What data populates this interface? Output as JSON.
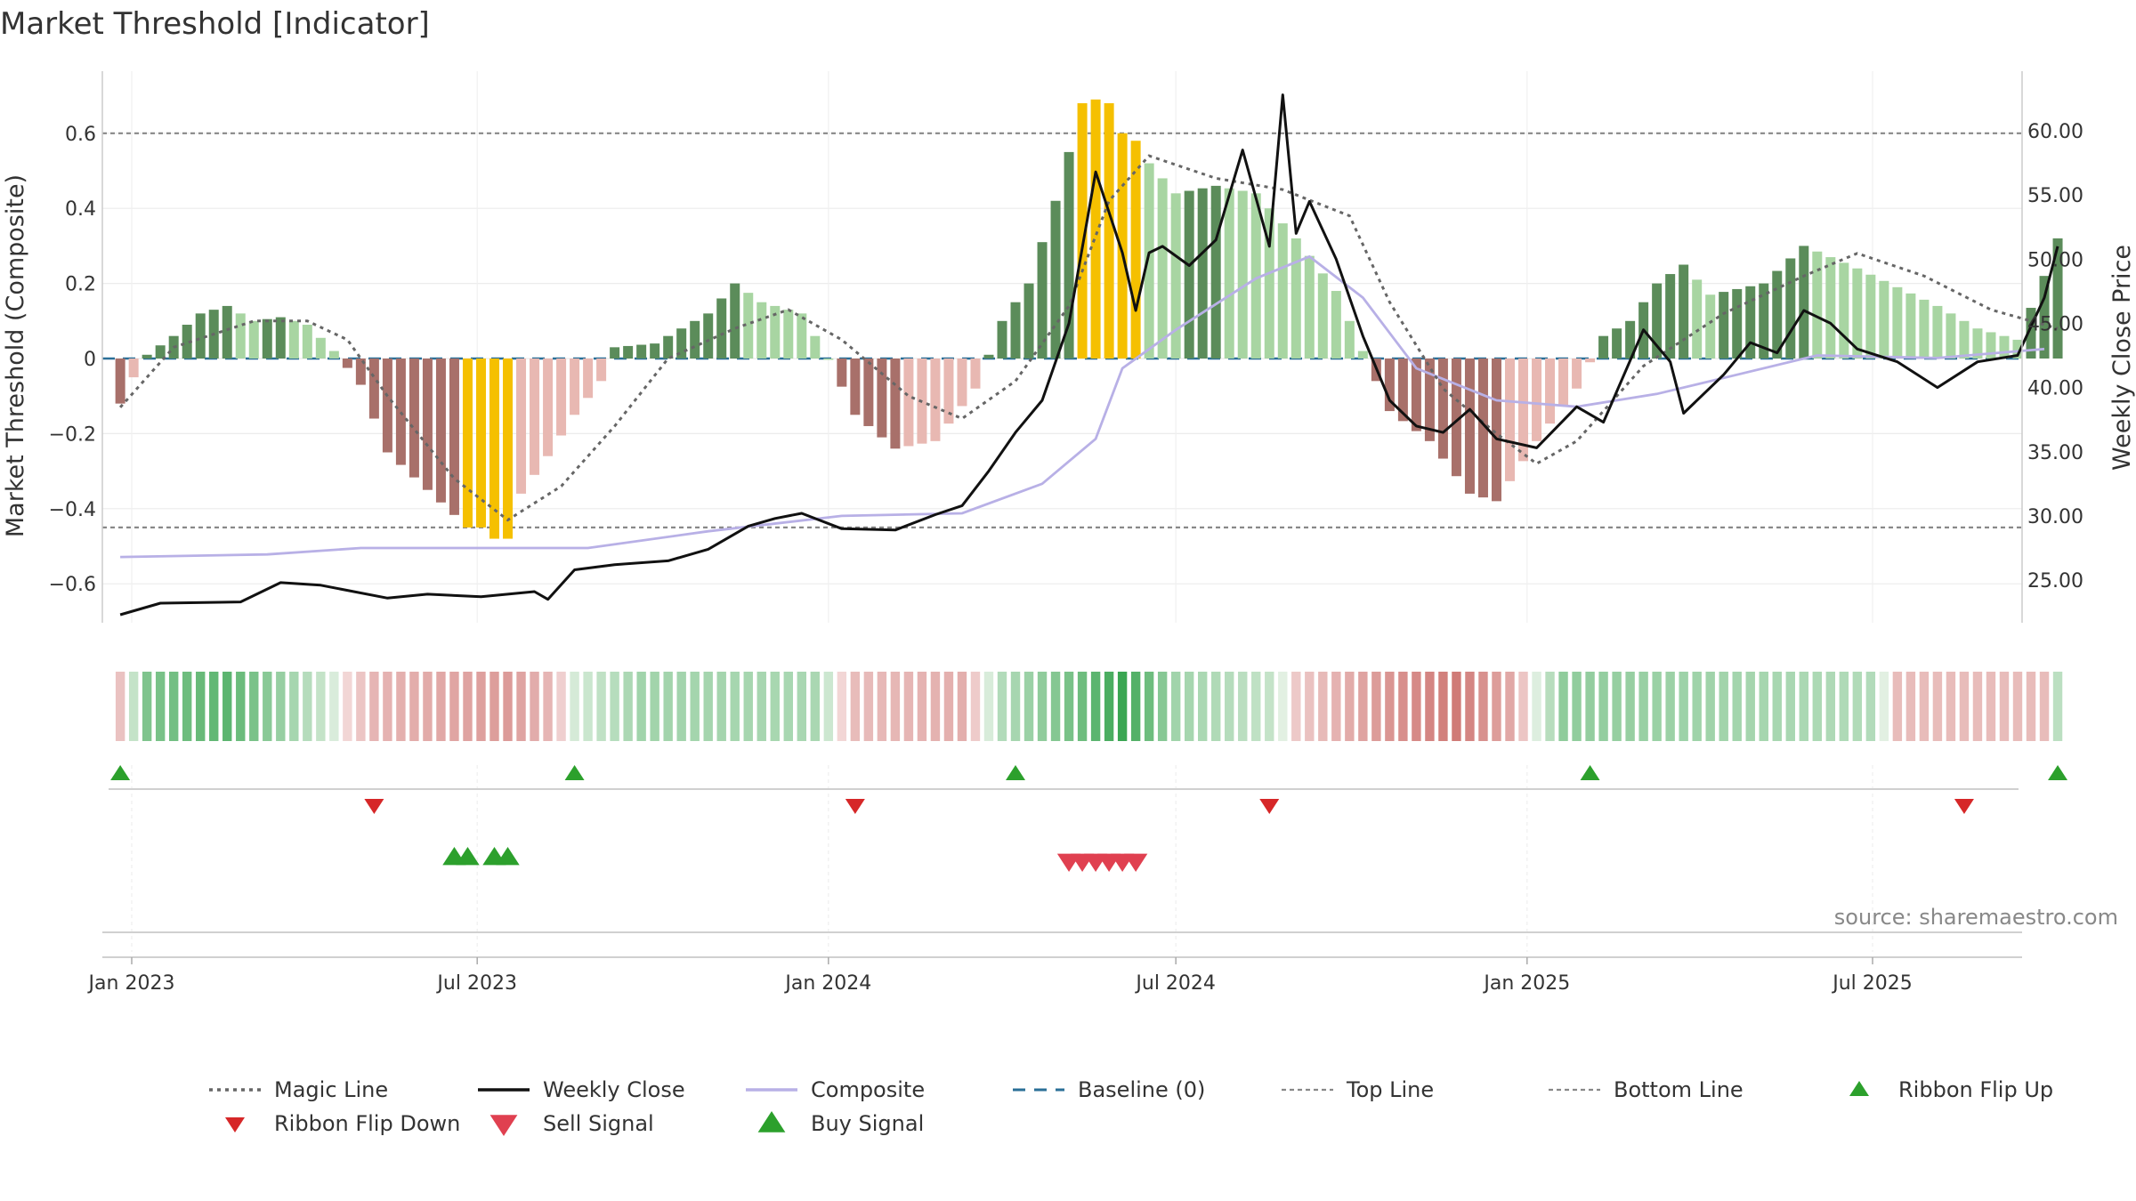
{
  "title": "Market Threshold [Indicator]",
  "source": "source: sharemaestro.com",
  "colors": {
    "dark_green": "#5b8c5a",
    "light_green": "#a8d5a2",
    "dark_red": "#a8706a",
    "light_red": "#e8b8b2",
    "gold": "#f5c000",
    "close": "#111111",
    "composite": "#b8b0e6",
    "magic": "#666666",
    "baseline": "#2a6f97",
    "thresh": "#888888",
    "up_marker": "#2ca02c",
    "down_marker": "#d62728"
  },
  "chart_data": {
    "type": "bar",
    "title": "Market Threshold [Indicator]",
    "ylabel": "Market Threshold (Composite)",
    "y2label": "Weekly Close Price",
    "ylim": [
      -0.75,
      0.76
    ],
    "y2lim": [
      20.0,
      64.0
    ],
    "yticks": [
      {
        "v": 0.6,
        "label": "0.6"
      },
      {
        "v": 0.4,
        "label": "0.4"
      },
      {
        "v": 0.2,
        "label": "0.2"
      },
      {
        "v": 0.0,
        "label": "0"
      },
      {
        "v": -0.2,
        "label": "−0.2"
      },
      {
        "v": -0.4,
        "label": "−0.4"
      },
      {
        "v": -0.6,
        "label": "−0.6"
      }
    ],
    "y2ticks": [
      {
        "v": 60,
        "label": "60.00"
      },
      {
        "v": 55,
        "label": "55.00"
      },
      {
        "v": 50,
        "label": "50.00"
      },
      {
        "v": 45,
        "label": "45.00"
      },
      {
        "v": 40,
        "label": "40.00"
      },
      {
        "v": 35,
        "label": "35.00"
      },
      {
        "v": 30,
        "label": "30.00"
      },
      {
        "v": 25,
        "label": "25.00"
      }
    ],
    "x_start": "2022-12-26",
    "x_end": "2025-10-06",
    "xticks": [
      {
        "date": "2023-01-01",
        "label": "Jan 2023"
      },
      {
        "date": "2023-07-01",
        "label": "Jul 2023"
      },
      {
        "date": "2024-01-01",
        "label": "Jan 2024"
      },
      {
        "date": "2024-07-01",
        "label": "Jul 2024"
      },
      {
        "date": "2025-01-01",
        "label": "Jan 2025"
      },
      {
        "date": "2025-07-01",
        "label": "Jul 2025"
      }
    ],
    "top_line": 0.6,
    "bottom_line": -0.45,
    "composite_keys": [
      [
        "2022-12-26",
        -0.12
      ],
      [
        "2023-01-02",
        -0.05
      ],
      [
        "2023-01-09",
        0.01
      ],
      [
        "2023-01-23",
        0.06
      ],
      [
        "2023-02-06",
        0.12
      ],
      [
        "2023-02-20",
        0.14
      ],
      [
        "2023-03-06",
        0.1
      ],
      [
        "2023-03-20",
        0.11
      ],
      [
        "2023-04-03",
        0.09
      ],
      [
        "2023-04-17",
        0.02
      ],
      [
        "2023-05-01",
        -0.07
      ],
      [
        "2023-05-15",
        -0.25
      ],
      [
        "2023-06-05",
        -0.35
      ],
      [
        "2023-06-26",
        -0.45
      ],
      [
        "2023-07-10",
        -0.48
      ],
      [
        "2023-07-24",
        -0.36
      ],
      [
        "2023-08-07",
        -0.26
      ],
      [
        "2023-08-21",
        -0.15
      ],
      [
        "2023-09-04",
        -0.06
      ],
      [
        "2023-09-11",
        0.03
      ],
      [
        "2023-10-02",
        0.04
      ],
      [
        "2023-10-30",
        0.12
      ],
      [
        "2023-11-13",
        0.2
      ],
      [
        "2023-11-27",
        0.15
      ],
      [
        "2023-12-18",
        0.12
      ],
      [
        "2024-01-01",
        0.0
      ],
      [
        "2024-01-15",
        -0.15
      ],
      [
        "2024-02-05",
        -0.24
      ],
      [
        "2024-02-26",
        -0.22
      ],
      [
        "2024-03-18",
        -0.08
      ],
      [
        "2024-04-01",
        0.1
      ],
      [
        "2024-04-15",
        0.2
      ],
      [
        "2024-04-29",
        0.42
      ],
      [
        "2024-05-13",
        0.68
      ],
      [
        "2024-05-27",
        0.69
      ],
      [
        "2024-06-10",
        0.56
      ],
      [
        "2024-07-01",
        0.44
      ],
      [
        "2024-07-22",
        0.46
      ],
      [
        "2024-08-12",
        0.44
      ],
      [
        "2024-09-02",
        0.32
      ],
      [
        "2024-09-23",
        0.18
      ],
      [
        "2024-10-07",
        0.02
      ],
      [
        "2024-10-21",
        -0.14
      ],
      [
        "2024-11-11",
        -0.22
      ],
      [
        "2024-12-02",
        -0.36
      ],
      [
        "2024-12-16",
        -0.38
      ],
      [
        "2025-01-06",
        -0.22
      ],
      [
        "2025-01-27",
        -0.08
      ],
      [
        "2025-02-10",
        0.06
      ],
      [
        "2025-02-24",
        0.1
      ],
      [
        "2025-03-10",
        0.2
      ],
      [
        "2025-03-24",
        0.25
      ],
      [
        "2025-04-07",
        0.17
      ],
      [
        "2025-05-05",
        0.2
      ],
      [
        "2025-05-26",
        0.3
      ],
      [
        "2025-06-23",
        0.24
      ],
      [
        "2025-07-14",
        0.19
      ],
      [
        "2025-08-04",
        0.14
      ],
      [
        "2025-08-25",
        0.08
      ],
      [
        "2025-09-15",
        0.05
      ],
      [
        "2025-09-29",
        0.22
      ],
      [
        "2025-10-06",
        0.32
      ]
    ],
    "gold_bars": [
      {
        "date": "2023-06-26",
        "v": -0.45
      },
      {
        "date": "2023-07-03",
        "v": -0.45
      },
      {
        "date": "2023-07-10",
        "v": -0.48
      },
      {
        "date": "2023-07-17",
        "v": -0.48
      },
      {
        "date": "2024-05-13",
        "v": 0.68
      },
      {
        "date": "2024-05-20",
        "v": 0.69
      },
      {
        "date": "2024-05-27",
        "v": 0.68
      },
      {
        "date": "2024-06-03",
        "v": 0.6
      },
      {
        "date": "2024-06-10",
        "v": 0.58
      }
    ],
    "close_keys": [
      [
        "2022-12-26",
        22.3
      ],
      [
        "2023-01-16",
        23.2
      ],
      [
        "2023-02-27",
        23.3
      ],
      [
        "2023-03-20",
        24.8
      ],
      [
        "2023-04-10",
        24.6
      ],
      [
        "2023-04-24",
        24.2
      ],
      [
        "2023-05-15",
        23.6
      ],
      [
        "2023-06-05",
        23.9
      ],
      [
        "2023-07-03",
        23.7
      ],
      [
        "2023-07-31",
        24.1
      ],
      [
        "2023-08-07",
        23.5
      ],
      [
        "2023-08-21",
        25.8
      ],
      [
        "2023-09-11",
        26.2
      ],
      [
        "2023-10-09",
        26.5
      ],
      [
        "2023-10-30",
        27.4
      ],
      [
        "2023-11-20",
        29.2
      ],
      [
        "2023-12-04",
        29.8
      ],
      [
        "2023-12-18",
        30.2
      ],
      [
        "2024-01-08",
        29.0
      ],
      [
        "2024-02-05",
        28.9
      ],
      [
        "2024-02-26",
        30.1
      ],
      [
        "2024-03-11",
        30.8
      ],
      [
        "2024-03-25",
        33.5
      ],
      [
        "2024-04-08",
        36.5
      ],
      [
        "2024-04-22",
        39.0
      ],
      [
        "2024-05-06",
        45.0
      ],
      [
        "2024-05-20",
        56.8
      ],
      [
        "2024-06-03",
        50.5
      ],
      [
        "2024-06-10",
        46.0
      ],
      [
        "2024-06-17",
        50.5
      ],
      [
        "2024-06-24",
        51.0
      ],
      [
        "2024-07-08",
        49.5
      ],
      [
        "2024-07-22",
        51.5
      ],
      [
        "2024-08-05",
        58.5
      ],
      [
        "2024-08-19",
        51.0
      ],
      [
        "2024-08-26",
        62.8
      ],
      [
        "2024-09-02",
        52.0
      ],
      [
        "2024-09-09",
        54.5
      ],
      [
        "2024-09-23",
        50.0
      ],
      [
        "2024-10-07",
        44.0
      ],
      [
        "2024-10-21",
        39.0
      ],
      [
        "2024-11-04",
        37.0
      ],
      [
        "2024-11-18",
        36.5
      ],
      [
        "2024-12-02",
        38.3
      ],
      [
        "2024-12-16",
        36.0
      ],
      [
        "2025-01-06",
        35.3
      ],
      [
        "2025-01-27",
        38.5
      ],
      [
        "2025-02-10",
        37.3
      ],
      [
        "2025-03-03",
        44.5
      ],
      [
        "2025-03-17",
        42.0
      ],
      [
        "2025-03-24",
        38.0
      ],
      [
        "2025-04-14",
        41.0
      ],
      [
        "2025-04-28",
        43.5
      ],
      [
        "2025-05-12",
        42.7
      ],
      [
        "2025-05-26",
        46.0
      ],
      [
        "2025-06-09",
        45.0
      ],
      [
        "2025-06-23",
        43.0
      ],
      [
        "2025-07-14",
        42.0
      ],
      [
        "2025-08-04",
        40.0
      ],
      [
        "2025-08-25",
        42.0
      ],
      [
        "2025-09-15",
        42.5
      ],
      [
        "2025-09-29",
        47.0
      ],
      [
        "2025-10-06",
        51.0
      ]
    ],
    "composite_line_keys": [
      [
        "2022-12-26",
        26.8
      ],
      [
        "2023-03-13",
        27.0
      ],
      [
        "2023-05-01",
        27.5
      ],
      [
        "2023-08-28",
        27.5
      ],
      [
        "2023-10-30",
        28.8
      ],
      [
        "2024-01-08",
        30.0
      ],
      [
        "2024-03-11",
        30.2
      ],
      [
        "2024-04-22",
        32.5
      ],
      [
        "2024-05-20",
        36.0
      ],
      [
        "2024-06-03",
        41.5
      ],
      [
        "2024-07-01",
        44.5
      ],
      [
        "2024-08-12",
        48.5
      ],
      [
        "2024-09-09",
        50.2
      ],
      [
        "2024-10-07",
        47.0
      ],
      [
        "2024-11-04",
        41.5
      ],
      [
        "2024-12-16",
        39.0
      ],
      [
        "2025-01-27",
        38.5
      ],
      [
        "2025-03-10",
        39.5
      ],
      [
        "2025-04-21",
        41.0
      ],
      [
        "2025-06-02",
        42.5
      ],
      [
        "2025-08-04",
        42.3
      ],
      [
        "2025-09-29",
        43.0
      ]
    ],
    "magic_line_keys": [
      [
        "2022-12-26",
        -0.13
      ],
      [
        "2023-01-23",
        0.03
      ],
      [
        "2023-03-06",
        0.1
      ],
      [
        "2023-04-03",
        0.1
      ],
      [
        "2023-04-24",
        0.05
      ],
      [
        "2023-05-15",
        -0.1
      ],
      [
        "2023-06-19",
        -0.32
      ],
      [
        "2023-07-17",
        -0.43
      ],
      [
        "2023-08-14",
        -0.34
      ],
      [
        "2023-09-11",
        -0.18
      ],
      [
        "2023-10-09",
        0.0
      ],
      [
        "2023-11-13",
        0.08
      ],
      [
        "2023-12-11",
        0.13
      ],
      [
        "2024-01-08",
        0.05
      ],
      [
        "2024-02-12",
        -0.1
      ],
      [
        "2024-03-11",
        -0.16
      ],
      [
        "2024-04-08",
        -0.06
      ],
      [
        "2024-05-06",
        0.14
      ],
      [
        "2024-05-27",
        0.42
      ],
      [
        "2024-06-17",
        0.54
      ],
      [
        "2024-07-22",
        0.48
      ],
      [
        "2024-08-26",
        0.45
      ],
      [
        "2024-09-30",
        0.38
      ],
      [
        "2024-10-21",
        0.15
      ],
      [
        "2024-11-18",
        -0.08
      ],
      [
        "2024-12-16",
        -0.2
      ],
      [
        "2025-01-06",
        -0.28
      ],
      [
        "2025-01-27",
        -0.22
      ],
      [
        "2025-03-03",
        -0.02
      ],
      [
        "2025-04-14",
        0.12
      ],
      [
        "2025-05-26",
        0.22
      ],
      [
        "2025-06-23",
        0.28
      ],
      [
        "2025-07-28",
        0.22
      ],
      [
        "2025-09-01",
        0.13
      ],
      [
        "2025-10-06",
        0.08
      ]
    ],
    "ribbon_keys": [
      [
        "2022-12-26",
        -0.2
      ],
      [
        "2023-01-09",
        0.6
      ],
      [
        "2023-02-20",
        0.8
      ],
      [
        "2023-04-10",
        0.2
      ],
      [
        "2023-05-08",
        -0.3
      ],
      [
        "2023-07-17",
        -0.5
      ],
      [
        "2023-08-07",
        -0.3
      ],
      [
        "2023-08-21",
        0.1
      ],
      [
        "2023-09-25",
        0.4
      ],
      [
        "2023-12-25",
        0.35
      ],
      [
        "2024-01-15",
        -0.25
      ],
      [
        "2024-03-11",
        -0.35
      ],
      [
        "2024-04-01",
        0.3
      ],
      [
        "2024-05-13",
        0.7
      ],
      [
        "2024-06-03",
        1.0
      ],
      [
        "2024-07-01",
        0.4
      ],
      [
        "2024-08-19",
        0.2
      ],
      [
        "2024-09-02",
        -0.15
      ],
      [
        "2024-10-21",
        -0.55
      ],
      [
        "2024-11-25",
        -0.75
      ],
      [
        "2024-12-23",
        -0.4
      ],
      [
        "2025-01-20",
        0.5
      ],
      [
        "2025-06-30",
        0.3
      ],
      [
        "2025-07-14",
        -0.25
      ],
      [
        "2025-09-29",
        -0.25
      ],
      [
        "2025-10-06",
        0.25
      ]
    ],
    "ribbon_flip_up": [
      "2022-12-26",
      "2023-08-21",
      "2024-04-08",
      "2025-02-03",
      "2025-10-06"
    ],
    "ribbon_flip_down": [
      "2023-05-08",
      "2024-01-15",
      "2024-08-19",
      "2025-08-18"
    ],
    "buy_signals": [
      "2023-06-19",
      "2023-06-26",
      "2023-07-10",
      "2023-07-17"
    ],
    "sell_signals": [
      "2024-05-06",
      "2024-05-13",
      "2024-05-20",
      "2024-05-27",
      "2024-06-03",
      "2024-06-10"
    ],
    "legend": [
      {
        "label": "Magic Line",
        "kind": "dotted",
        "color": "#666666"
      },
      {
        "label": "Weekly Close",
        "kind": "solid",
        "color": "#111111"
      },
      {
        "label": "Composite",
        "kind": "solid",
        "color": "#b8b0e6"
      },
      {
        "label": "Baseline (0)",
        "kind": "dashed",
        "color": "#2a6f97"
      },
      {
        "label": "Top Line",
        "kind": "dash-thin",
        "color": "#888888"
      },
      {
        "label": "Bottom Line",
        "kind": "dash-thin",
        "color": "#888888"
      },
      {
        "label": "Ribbon Flip Up",
        "kind": "tri-up",
        "color": "#2ca02c"
      },
      {
        "label": "Ribbon Flip Down",
        "kind": "tri-down",
        "color": "#d62728"
      },
      {
        "label": "Sell Signal",
        "kind": "tri-down-big",
        "color": "#e04050"
      },
      {
        "label": "Buy Signal",
        "kind": "tri-up-big",
        "color": "#2ca02c"
      }
    ]
  }
}
